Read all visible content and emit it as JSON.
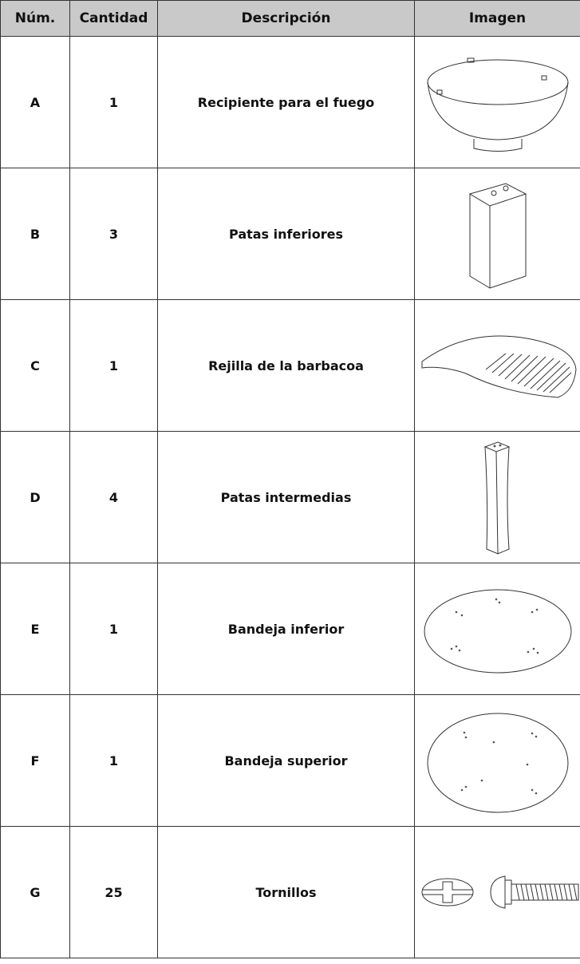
{
  "table": {
    "header": [
      "Núm.",
      "Cantidad",
      "Descripción",
      "Imagen"
    ],
    "rows": [
      [
        "A",
        1,
        "Recipiente para el fuego"
      ],
      [
        "B",
        3,
        "Patas inferiores"
      ],
      [
        "C",
        1,
        "Rejilla de la barbacoa"
      ],
      [
        "D",
        4,
        "Patas intermedias"
      ],
      [
        "E",
        1,
        "Bandeja inferior"
      ],
      [
        "F",
        1,
        "Bandeja superior"
      ],
      [
        "G",
        25,
        "Tornillos"
      ]
    ]
  }
}
